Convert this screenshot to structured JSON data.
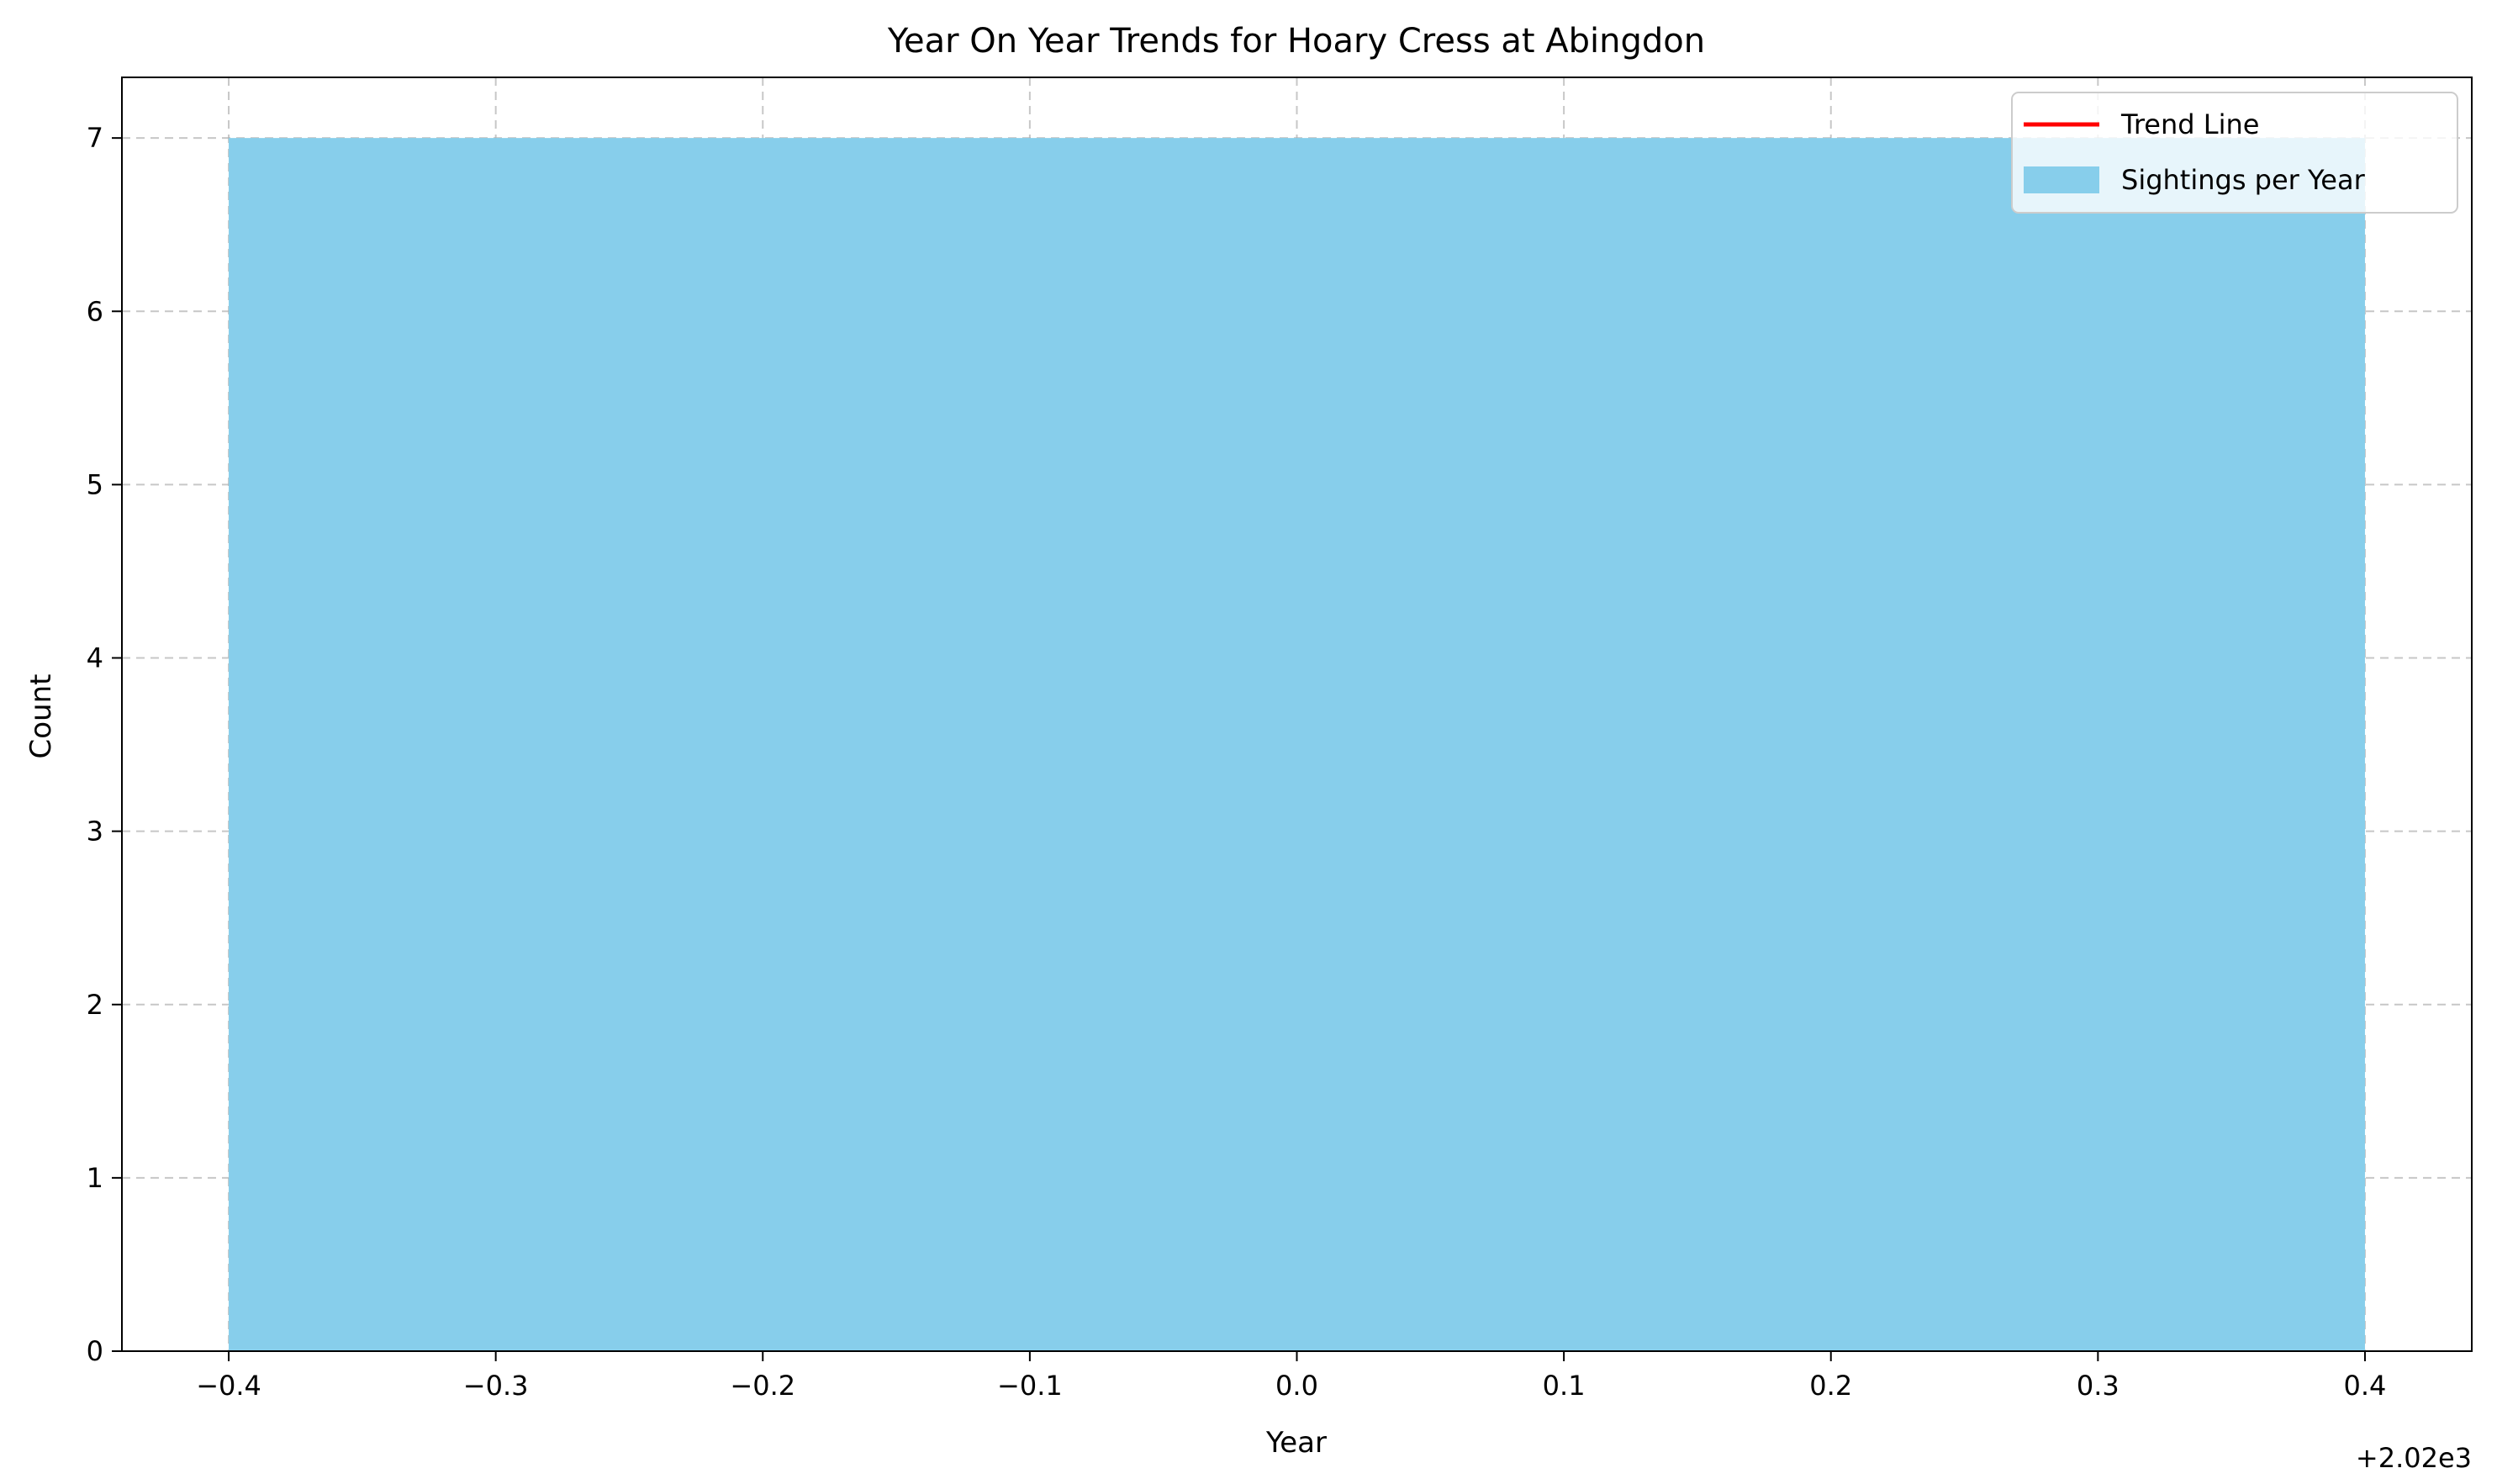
{
  "chart_data": {
    "type": "bar",
    "title": "Year On Year Trends for Hoary Cress at Abingdon",
    "xlabel": "Year",
    "ylabel": "Count",
    "x_offset_label": "+2.02e3",
    "xlim": [
      -0.44,
      0.44
    ],
    "ylim": [
      0,
      7.35
    ],
    "x_ticks": [
      -0.4,
      -0.3,
      -0.2,
      -0.1,
      0.0,
      0.1,
      0.2,
      0.3,
      0.4
    ],
    "x_tick_labels": [
      "−0.4",
      "−0.3",
      "−0.2",
      "−0.1",
      "0.0",
      "0.1",
      "0.2",
      "0.3",
      "0.4"
    ],
    "y_ticks": [
      0,
      1,
      2,
      3,
      4,
      5,
      6,
      7
    ],
    "y_tick_labels": [
      "0",
      "1",
      "2",
      "3",
      "4",
      "5",
      "6",
      "7"
    ],
    "grid": true,
    "legend_placement": "top-right",
    "series": [
      {
        "name": "Trend Line",
        "type": "line",
        "color": "#ff0000",
        "x": [],
        "y": []
      },
      {
        "name": "Sightings per Year",
        "type": "bar",
        "color": "#87ceeb",
        "x": [
          0
        ],
        "values": [
          7
        ],
        "bar_width": 0.8
      }
    ]
  }
}
